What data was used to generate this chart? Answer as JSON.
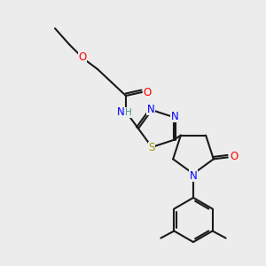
{
  "bg_color": "#ececec",
  "bond_color": "#1a1a1a",
  "bond_width": 1.5,
  "atom_colors": {
    "O": "#ff0000",
    "N": "#0000ff",
    "S": "#999900",
    "H": "#4a9090",
    "C": "#1a1a1a"
  },
  "font_size": 8.5,
  "figsize": [
    3.0,
    3.0
  ],
  "dpi": 100
}
